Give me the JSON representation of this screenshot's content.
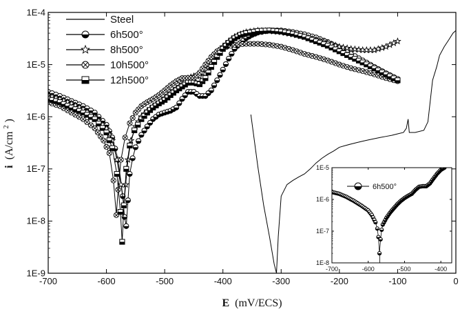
{
  "chart_data": {
    "type": "line",
    "xlabel_symbol": "E",
    "xlabel_unit": "(mV/ECS)",
    "ylabel_symbol": "i",
    "ylabel_unit": "(A/cm",
    "ylabel_unit_sup": "2",
    "ylabel_unit_tail": ")",
    "xlim": [
      -700,
      0
    ],
    "ylim": [
      1e-09,
      0.0001
    ],
    "y_scale": "log",
    "x_ticks": [
      -700,
      -600,
      -500,
      -400,
      -300,
      -200,
      -100,
      0
    ],
    "x_tick_labels": [
      "-700",
      "-600",
      "-500",
      "-400",
      "-300",
      "-200",
      "-100",
      "0"
    ],
    "y_ticks": [
      1e-09,
      1e-08,
      1e-07,
      1e-06,
      1e-05,
      0.0001
    ],
    "y_tick_labels": [
      "1E-9",
      "1E-8",
      "1E-7",
      "1E-6",
      "1E-5",
      "1E-4"
    ],
    "legend_position": "top-left",
    "series": [
      {
        "name": "Steel",
        "marker": "none",
        "points": [
          [
            -352,
            1.1e-06
          ],
          [
            -340,
            1.1e-07
          ],
          [
            -330,
            2e-08
          ],
          [
            -320,
            5e-09
          ],
          [
            -312,
            1.5e-09
          ],
          [
            -308,
            1e-09
          ],
          [
            -305,
            5e-09
          ],
          [
            -300,
            3e-08
          ],
          [
            -290,
            5e-08
          ],
          [
            -280,
            6e-08
          ],
          [
            -270,
            7e-08
          ],
          [
            -260,
            8e-08
          ],
          [
            -250,
            1e-07
          ],
          [
            -240,
            1.3e-07
          ],
          [
            -230,
            1.6e-07
          ],
          [
            -220,
            1.9e-07
          ],
          [
            -210,
            2.2e-07
          ],
          [
            -200,
            2.6e-07
          ],
          [
            -190,
            2.8e-07
          ],
          [
            -180,
            3e-07
          ],
          [
            -170,
            3.2e-07
          ],
          [
            -160,
            3.4e-07
          ],
          [
            -150,
            3.6e-07
          ],
          [
            -140,
            3.8e-07
          ],
          [
            -130,
            4e-07
          ],
          [
            -120,
            4.2e-07
          ],
          [
            -110,
            4.4e-07
          ],
          [
            -100,
            4.7e-07
          ],
          [
            -90,
            5e-07
          ],
          [
            -85,
            6e-07
          ],
          [
            -82,
            9e-07
          ],
          [
            -80,
            5e-07
          ],
          [
            -70,
            5e-07
          ],
          [
            -55,
            5.5e-07
          ],
          [
            -48,
            8e-07
          ],
          [
            -44,
            2e-06
          ],
          [
            -40,
            5e-06
          ],
          [
            -33,
            9e-06
          ],
          [
            -28,
            1.5e-05
          ],
          [
            -20,
            2.2e-05
          ],
          [
            -12,
            3e-05
          ],
          [
            -5,
            4e-05
          ],
          [
            0,
            4.5e-05
          ]
        ]
      },
      {
        "name": "6h500°",
        "marker": "circle",
        "points": [
          [
            -700,
            3e-06
          ],
          [
            -680,
            2.5e-06
          ],
          [
            -660,
            2e-06
          ],
          [
            -640,
            1.6e-06
          ],
          [
            -620,
            1.2e-06
          ],
          [
            -600,
            7e-07
          ],
          [
            -590,
            4e-07
          ],
          [
            -580,
            1.5e-07
          ],
          [
            -572,
            3e-08
          ],
          [
            -569,
            1.2e-08
          ],
          [
            -566,
            8e-09
          ],
          [
            -563,
            2.5e-08
          ],
          [
            -560,
            8e-08
          ],
          [
            -555,
            1.6e-07
          ],
          [
            -550,
            2.6e-07
          ],
          [
            -540,
            4.5e-07
          ],
          [
            -530,
            6.5e-07
          ],
          [
            -520,
            9e-07
          ],
          [
            -510,
            1.1e-06
          ],
          [
            -500,
            1.2e-06
          ],
          [
            -490,
            1.3e-06
          ],
          [
            -480,
            1.5e-06
          ],
          [
            -470,
            2.2e-06
          ],
          [
            -460,
            3e-06
          ],
          [
            -450,
            3e-06
          ],
          [
            -440,
            2.5e-06
          ],
          [
            -430,
            2.5e-06
          ],
          [
            -420,
            3.2e-06
          ],
          [
            -410,
            5e-06
          ],
          [
            -400,
            8e-06
          ],
          [
            -390,
            1.3e-05
          ],
          [
            -380,
            2e-05
          ],
          [
            -370,
            2.6e-05
          ],
          [
            -360,
            3.2e-05
          ],
          [
            -350,
            3.7e-05
          ],
          [
            -340,
            4.1e-05
          ],
          [
            -320,
            4.5e-05
          ],
          [
            -300,
            4.5e-05
          ],
          [
            -280,
            4.2e-05
          ],
          [
            -260,
            3.8e-05
          ],
          [
            -240,
            3.3e-05
          ],
          [
            -220,
            2.7e-05
          ],
          [
            -200,
            2.1e-05
          ],
          [
            -180,
            1.6e-05
          ],
          [
            -160,
            1.2e-05
          ],
          [
            -140,
            9e-06
          ],
          [
            -120,
            6.8e-06
          ],
          [
            -100,
            5.3e-06
          ]
        ]
      },
      {
        "name": "8h500°",
        "marker": "star",
        "points": [
          [
            -700,
            2.6e-06
          ],
          [
            -680,
            2.2e-06
          ],
          [
            -660,
            1.8e-06
          ],
          [
            -640,
            1.4e-06
          ],
          [
            -620,
            1e-06
          ],
          [
            -600,
            6e-07
          ],
          [
            -590,
            3.5e-07
          ],
          [
            -582,
            1.5e-07
          ],
          [
            -575,
            5e-08
          ],
          [
            -570,
            2e-08
          ],
          [
            -567,
            5e-08
          ],
          [
            -563,
            1.5e-07
          ],
          [
            -558,
            3.5e-07
          ],
          [
            -550,
            6.5e-07
          ],
          [
            -540,
            1e-06
          ],
          [
            -530,
            1.3e-06
          ],
          [
            -520,
            1.6e-06
          ],
          [
            -510,
            1.9e-06
          ],
          [
            -500,
            2.3e-06
          ],
          [
            -490,
            2.9e-06
          ],
          [
            -480,
            3.5e-06
          ],
          [
            -470,
            4.2e-06
          ],
          [
            -460,
            5.5e-06
          ],
          [
            -450,
            6e-06
          ],
          [
            -440,
            6e-06
          ],
          [
            -430,
            8e-06
          ],
          [
            -420,
            1.2e-05
          ],
          [
            -410,
            1.6e-05
          ],
          [
            -400,
            2.2e-05
          ],
          [
            -390,
            2.8e-05
          ],
          [
            -380,
            3.4e-05
          ],
          [
            -370,
            3.8e-05
          ],
          [
            -360,
            4.2e-05
          ],
          [
            -340,
            4.5e-05
          ],
          [
            -320,
            4.4e-05
          ],
          [
            -300,
            4.2e-05
          ],
          [
            -280,
            3.8e-05
          ],
          [
            -260,
            3.4e-05
          ],
          [
            -240,
            3e-05
          ],
          [
            -220,
            2.6e-05
          ],
          [
            -200,
            2.2e-05
          ],
          [
            -180,
            2e-05
          ],
          [
            -160,
            1.9e-05
          ],
          [
            -140,
            1.9e-05
          ],
          [
            -120,
            2.2e-05
          ],
          [
            -100,
            2.8e-05
          ]
        ]
      },
      {
        "name": "10h500°",
        "marker": "circle-x",
        "points": [
          [
            -700,
            1.9e-06
          ],
          [
            -680,
            1.6e-06
          ],
          [
            -660,
            1.2e-06
          ],
          [
            -640,
            9e-07
          ],
          [
            -620,
            6e-07
          ],
          [
            -605,
            3.5e-07
          ],
          [
            -595,
            2e-07
          ],
          [
            -588,
            6e-08
          ],
          [
            -583,
            1.3e-08
          ],
          [
            -580,
            4e-08
          ],
          [
            -575,
            1.5e-07
          ],
          [
            -568,
            4e-07
          ],
          [
            -560,
            7.5e-07
          ],
          [
            -550,
            1.2e-06
          ],
          [
            -540,
            1.6e-06
          ],
          [
            -530,
            1.9e-06
          ],
          [
            -520,
            2.2e-06
          ],
          [
            -510,
            2.6e-06
          ],
          [
            -500,
            3.2e-06
          ],
          [
            -490,
            4e-06
          ],
          [
            -480,
            4.8e-06
          ],
          [
            -470,
            5.5e-06
          ],
          [
            -460,
            5.5e-06
          ],
          [
            -450,
            5.5e-06
          ],
          [
            -440,
            7e-06
          ],
          [
            -430,
            1e-05
          ],
          [
            -420,
            1.4e-05
          ],
          [
            -410,
            1.8e-05
          ],
          [
            -400,
            2.1e-05
          ],
          [
            -380,
            2.4e-05
          ],
          [
            -360,
            2.5e-05
          ],
          [
            -340,
            2.5e-05
          ],
          [
            -320,
            2.4e-05
          ],
          [
            -300,
            2.2e-05
          ],
          [
            -280,
            1.9e-05
          ],
          [
            -260,
            1.6e-05
          ],
          [
            -240,
            1.4e-05
          ],
          [
            -220,
            1.2e-05
          ],
          [
            -200,
            1e-05
          ],
          [
            -180,
            8.5e-06
          ],
          [
            -160,
            7.5e-06
          ],
          [
            -140,
            6.5e-06
          ],
          [
            -120,
            5.5e-06
          ],
          [
            -100,
            4.8e-06
          ]
        ]
      },
      {
        "name": "12h500°",
        "marker": "square",
        "points": [
          [
            -700,
            2.2e-06
          ],
          [
            -680,
            1.9e-06
          ],
          [
            -660,
            1.5e-06
          ],
          [
            -640,
            1.2e-06
          ],
          [
            -620,
            9e-07
          ],
          [
            -600,
            5e-07
          ],
          [
            -590,
            2.5e-07
          ],
          [
            -582,
            8e-08
          ],
          [
            -576,
            1.5e-08
          ],
          [
            -573,
            4e-09
          ],
          [
            -570,
            2e-08
          ],
          [
            -566,
            1e-07
          ],
          [
            -560,
            2.8e-07
          ],
          [
            -552,
            5.5e-07
          ],
          [
            -540,
            9e-07
          ],
          [
            -530,
            1.2e-06
          ],
          [
            -520,
            1.5e-06
          ],
          [
            -510,
            1.8e-06
          ],
          [
            -500,
            2.1e-06
          ],
          [
            -490,
            2.6e-06
          ],
          [
            -480,
            3.2e-06
          ],
          [
            -470,
            3.8e-06
          ],
          [
            -460,
            4.5e-06
          ],
          [
            -450,
            4.5e-06
          ],
          [
            -440,
            4.2e-06
          ],
          [
            -430,
            5.5e-06
          ],
          [
            -420,
            9e-06
          ],
          [
            -410,
            1.4e-05
          ],
          [
            -400,
            2e-05
          ],
          [
            -390,
            2.6e-05
          ],
          [
            -380,
            3.2e-05
          ],
          [
            -370,
            3.7e-05
          ],
          [
            -360,
            4e-05
          ],
          [
            -340,
            4.4e-05
          ],
          [
            -320,
            4.5e-05
          ],
          [
            -300,
            4.3e-05
          ],
          [
            -280,
            3.9e-05
          ],
          [
            -260,
            3.4e-05
          ],
          [
            -240,
            2.8e-05
          ],
          [
            -220,
            2.3e-05
          ],
          [
            -200,
            1.8e-05
          ],
          [
            -180,
            1.4e-05
          ],
          [
            -160,
            1.1e-05
          ],
          [
            -140,
            8.5e-06
          ],
          [
            -120,
            6.5e-06
          ],
          [
            -100,
            5e-06
          ]
        ]
      }
    ],
    "inset": {
      "type": "line",
      "xlim": [
        -700,
        -370
      ],
      "ylim": [
        1e-08,
        1e-05
      ],
      "y_scale": "log",
      "x_ticks": [
        -700,
        -600,
        -500,
        -400
      ],
      "x_tick_labels": [
        "-700",
        "-600",
        "-500",
        "-400"
      ],
      "y_ticks": [
        1e-08,
        1e-07,
        1e-06,
        1e-05
      ],
      "y_tick_labels": [
        "1E-8",
        "1E-7",
        "1E-6",
        "1E-5"
      ],
      "legend_position": "top-left",
      "series": [
        {
          "name": "6h500°",
          "marker": "circle",
          "points": [
            [
              -700,
              1.7e-06
            ],
            [
              -680,
              1.5e-06
            ],
            [
              -660,
              1.2e-06
            ],
            [
              -640,
              9e-07
            ],
            [
              -620,
              6.5e-07
            ],
            [
              -600,
              4.5e-07
            ],
            [
              -590,
              3.2e-07
            ],
            [
              -580,
              1.9e-07
            ],
            [
              -575,
              1.2e-07
            ],
            [
              -572,
              6.5e-08
            ],
            [
              -569,
              2e-08
            ],
            [
              -566,
              5.5e-08
            ],
            [
              -563,
              1.1e-07
            ],
            [
              -560,
              1.6e-07
            ],
            [
              -550,
              2.6e-07
            ],
            [
              -540,
              3.8e-07
            ],
            [
              -530,
              5.2e-07
            ],
            [
              -520,
              7e-07
            ],
            [
              -510,
              9e-07
            ],
            [
              -500,
              1.1e-06
            ],
            [
              -490,
              1.3e-06
            ],
            [
              -480,
              1.5e-06
            ],
            [
              -470,
              2e-06
            ],
            [
              -460,
              2.5e-06
            ],
            [
              -450,
              2.6e-06
            ],
            [
              -440,
              2.6e-06
            ],
            [
              -430,
              3.2e-06
            ],
            [
              -420,
              4.6e-06
            ],
            [
              -410,
              6.5e-06
            ],
            [
              -400,
              8.5e-06
            ],
            [
              -390,
              1e-05
            ]
          ]
        }
      ]
    }
  }
}
